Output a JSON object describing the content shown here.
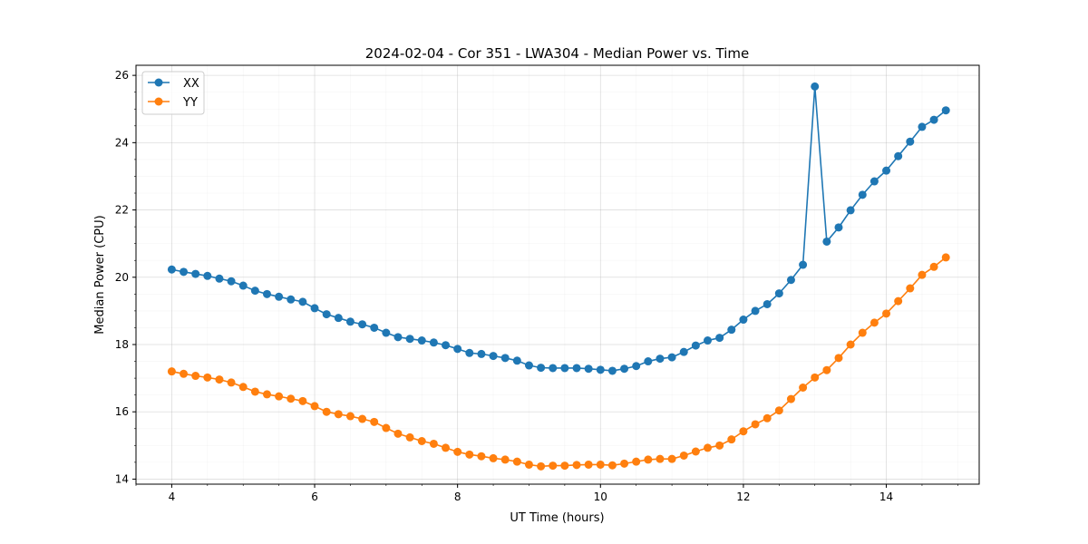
{
  "chart_data": {
    "type": "line",
    "title": "2024-02-04 - Cor 351 - LWA304 - Median Power vs. Time",
    "xlabel": "UT Time (hours)",
    "ylabel": "Median Power (CPU)",
    "xlim": [
      3.5,
      15.3
    ],
    "ylim": [
      13.85,
      26.3
    ],
    "xticks": [
      4,
      6,
      8,
      10,
      12,
      14
    ],
    "yticks": [
      14,
      16,
      18,
      20,
      22,
      24,
      26
    ],
    "grid": true,
    "legend_position": "upper-left",
    "x": [
      4.0,
      4.1667,
      4.3333,
      4.5,
      4.6667,
      4.8333,
      5.0,
      5.1667,
      5.3333,
      5.5,
      5.6667,
      5.8333,
      6.0,
      6.1667,
      6.3333,
      6.5,
      6.6667,
      6.8333,
      7.0,
      7.1667,
      7.3333,
      7.5,
      7.6667,
      7.8333,
      8.0,
      8.1667,
      8.3333,
      8.5,
      8.6667,
      8.8333,
      9.0,
      9.1667,
      9.3333,
      9.5,
      9.6667,
      9.8333,
      10.0,
      10.1667,
      10.3333,
      10.5,
      10.6667,
      10.8333,
      11.0,
      11.1667,
      11.3333,
      11.5,
      11.6667,
      11.8333,
      12.0,
      12.1667,
      12.3333,
      12.5,
      12.6667,
      12.8333,
      13.0,
      13.1667,
      13.3333,
      13.5,
      13.6667,
      13.8333,
      14.0,
      14.1667,
      14.3333,
      14.5,
      14.6667,
      14.8333
    ],
    "series": [
      {
        "name": "XX",
        "color": "#1f77b4",
        "values": [
          20.23,
          20.16,
          20.1,
          20.04,
          19.96,
          19.88,
          19.75,
          19.6,
          19.5,
          19.42,
          19.34,
          19.27,
          19.08,
          18.9,
          18.79,
          18.68,
          18.6,
          18.5,
          18.35,
          18.22,
          18.17,
          18.12,
          18.06,
          17.98,
          17.87,
          17.75,
          17.72,
          17.66,
          17.6,
          17.52,
          17.38,
          17.31,
          17.3,
          17.3,
          17.3,
          17.28,
          17.25,
          17.22,
          17.28,
          17.36,
          17.5,
          17.58,
          17.62,
          17.78,
          17.97,
          18.12,
          18.2,
          18.44,
          18.74,
          19.0,
          19.2,
          19.52,
          19.92,
          20.37,
          25.67,
          21.06,
          21.48,
          21.99,
          22.45,
          22.85,
          23.17,
          23.6,
          24.03,
          24.47,
          24.68,
          24.96
        ]
      },
      {
        "name": "YY",
        "color": "#ff7f0e",
        "values": [
          17.2,
          17.13,
          17.07,
          17.02,
          16.96,
          16.87,
          16.74,
          16.6,
          16.52,
          16.46,
          16.39,
          16.32,
          16.17,
          16.0,
          15.93,
          15.87,
          15.79,
          15.7,
          15.52,
          15.35,
          15.24,
          15.13,
          15.05,
          14.93,
          14.81,
          14.73,
          14.68,
          14.62,
          14.58,
          14.52,
          14.43,
          14.38,
          14.4,
          14.4,
          14.42,
          14.43,
          14.43,
          14.41,
          14.46,
          14.52,
          14.58,
          14.6,
          14.6,
          14.7,
          14.82,
          14.93,
          15.0,
          15.18,
          15.42,
          15.63,
          15.81,
          16.04,
          16.38,
          16.72,
          17.02,
          17.24,
          17.6,
          18.0,
          18.35,
          18.65,
          18.92,
          19.29,
          19.67,
          20.07,
          20.31,
          20.59
        ]
      }
    ]
  }
}
